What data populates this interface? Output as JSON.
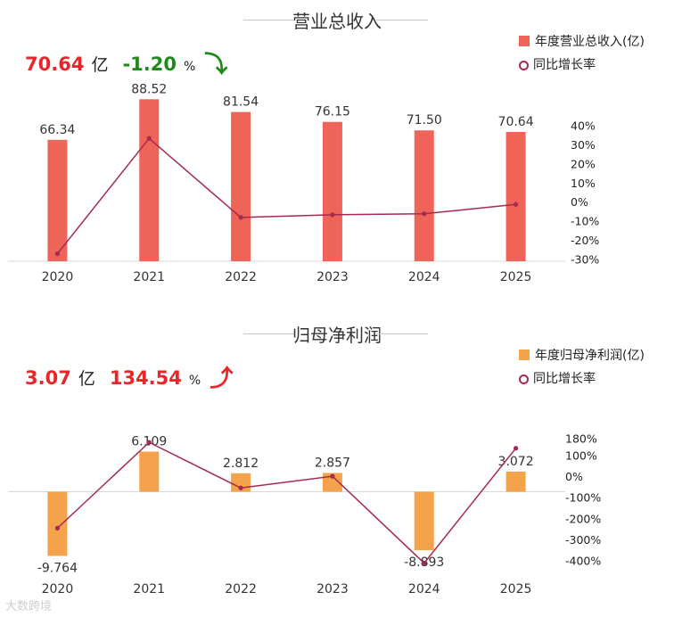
{
  "chart_data": [
    {
      "type": "bar",
      "title": "营业总收入",
      "summary": {
        "value": "70.64",
        "unit": "亿",
        "change": "-1.20",
        "change_unit": "%",
        "direction_icon": "arrow-down-icon"
      },
      "categories": [
        "2020",
        "2021",
        "2022",
        "2023",
        "2024",
        "2025"
      ],
      "series": [
        {
          "name": "年度营业总收入(亿)",
          "type": "bar",
          "color": "#ef6458",
          "values": [
            66.34,
            88.52,
            81.54,
            76.15,
            71.5,
            70.64
          ],
          "labels": [
            "66.34",
            "88.52",
            "81.54",
            "76.15",
            "71.50",
            "70.64"
          ]
        },
        {
          "name": "同比增长率",
          "type": "line",
          "color": "#a62a4d",
          "axis": "right",
          "values": [
            -27,
            33.4,
            -8,
            -6.6,
            -6.1,
            -1.2
          ]
        }
      ],
      "ylim_left": [
        0,
        95
      ],
      "ylim_right": [
        -30,
        40
      ],
      "right_ticks": [
        "40%",
        "30%",
        "20%",
        "10%",
        "0%",
        "-10%",
        "-20%",
        "-30%"
      ],
      "right_tick_values": [
        40,
        30,
        20,
        10,
        0,
        -10,
        -20,
        -30
      ],
      "legend": "top-right"
    },
    {
      "type": "bar",
      "title": "归母净利润",
      "summary": {
        "value": "3.07",
        "unit": "亿",
        "change": "134.54",
        "change_unit": "%",
        "direction_icon": "arrow-up-icon"
      },
      "categories": [
        "2020",
        "2021",
        "2022",
        "2023",
        "2024",
        "2025"
      ],
      "series": [
        {
          "name": "年度归母净利润(亿)",
          "type": "bar",
          "color": "#f5a24c",
          "values": [
            -9.764,
            6.109,
            2.812,
            2.857,
            -8.893,
            3.072
          ],
          "labels": [
            "-9.764",
            "6.109",
            "2.812",
            "2.857",
            "-8.893",
            "3.072"
          ]
        },
        {
          "name": "同比增长率",
          "type": "line",
          "color": "#a62a4d",
          "axis": "right",
          "values": [
            -245,
            162.5,
            -54,
            1.6,
            -411,
            134.54
          ]
        }
      ],
      "ylim_left": [
        -15,
        15
      ],
      "ylim_right": [
        -400,
        180
      ],
      "right_ticks": [
        "180%",
        "100%",
        "0%",
        "-100%",
        "-200%",
        "-300%",
        "-400%"
      ],
      "right_tick_values": [
        180,
        100,
        0,
        -100,
        -200,
        -300,
        -400
      ],
      "legend": "top-right"
    }
  ],
  "colors": {
    "positive": "#e8262a",
    "negative": "#1f8a1a",
    "line": "#a62a4d"
  },
  "watermark": "大数跨境"
}
